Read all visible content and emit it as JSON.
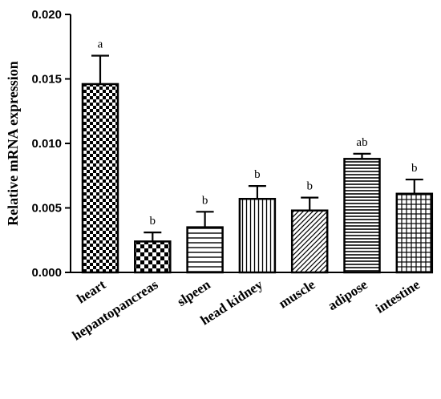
{
  "chart_data": {
    "type": "bar",
    "title": "",
    "xlabel": "",
    "ylabel": "Relative mRNA expression",
    "ylim": [
      0,
      0.02
    ],
    "y_ticks": [
      "0.000",
      "0.005",
      "0.010",
      "0.015",
      "0.020"
    ],
    "y_tick_values": [
      0,
      0.005,
      0.01,
      0.015,
      0.02
    ],
    "grid": false,
    "categories": [
      "heart",
      "hepantopancreas",
      "slpeen",
      "head kidney",
      "muscle",
      "adipose",
      "intestine"
    ],
    "values": [
      0.0146,
      0.0024,
      0.0035,
      0.0057,
      0.0048,
      0.0088,
      0.0061
    ],
    "error_upper": [
      0.0022,
      0.0007,
      0.0012,
      0.001,
      0.001,
      0.0004,
      0.0011
    ],
    "significance": [
      "a",
      "b",
      "b",
      "b",
      "b",
      "ab",
      "b"
    ],
    "patterns": [
      "checker-large",
      "checker-small",
      "horizontal-lines",
      "vertical-lines",
      "diagonal-lines",
      "dense-horizontal",
      "grid"
    ]
  },
  "colors": {
    "ink": "#000000",
    "background": "#ffffff"
  }
}
